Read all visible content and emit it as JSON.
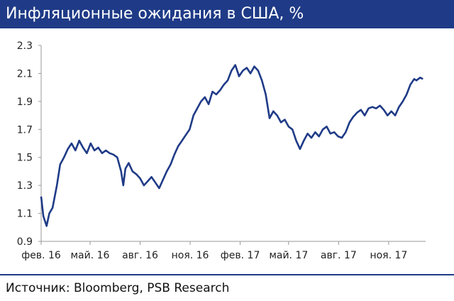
{
  "title": "Инфляционные ожидания в США, %",
  "source": "Источник: Bloomberg, PSB Research",
  "colors": {
    "title_bg": "#1f3b87",
    "line": "#1f3b87",
    "axis": "#999999"
  },
  "chart_data": {
    "type": "line",
    "title": "Инфляционные ожидания в США, %",
    "xlabel": "",
    "ylabel": "",
    "ylim": [
      0.9,
      2.3
    ],
    "yticks": [
      "0.9",
      "1.1",
      "1.3",
      "1.5",
      "1.7",
      "1.9",
      "2.1",
      "2.3"
    ],
    "xticks": [
      {
        "label": "фев. 16",
        "date": "2016-02-01"
      },
      {
        "label": "май. 16",
        "date": "2016-05-01"
      },
      {
        "label": "авг. 16",
        "date": "2016-08-01"
      },
      {
        "label": "ноя. 16",
        "date": "2016-11-01"
      },
      {
        "label": "фев. 17",
        "date": "2017-02-01"
      },
      {
        "label": "май. 17",
        "date": "2017-05-01"
      },
      {
        "label": "авг. 17",
        "date": "2017-08-01"
      },
      {
        "label": "ноя. 17",
        "date": "2017-11-01"
      }
    ],
    "grid": false,
    "legend": "none",
    "series": [
      {
        "points": [
          [
            "2016-02-01",
            1.22
          ],
          [
            "2016-02-05",
            1.08
          ],
          [
            "2016-02-11",
            1.01
          ],
          [
            "2016-02-16",
            1.1
          ],
          [
            "2016-02-22",
            1.14
          ],
          [
            "2016-03-01",
            1.3
          ],
          [
            "2016-03-07",
            1.45
          ],
          [
            "2016-03-14",
            1.5
          ],
          [
            "2016-03-21",
            1.56
          ],
          [
            "2016-03-28",
            1.6
          ],
          [
            "2016-04-04",
            1.55
          ],
          [
            "2016-04-11",
            1.62
          ],
          [
            "2016-04-18",
            1.57
          ],
          [
            "2016-04-25",
            1.53
          ],
          [
            "2016-05-02",
            1.6
          ],
          [
            "2016-05-09",
            1.55
          ],
          [
            "2016-05-16",
            1.57
          ],
          [
            "2016-05-23",
            1.53
          ],
          [
            "2016-05-30",
            1.55
          ],
          [
            "2016-06-06",
            1.53
          ],
          [
            "2016-06-13",
            1.52
          ],
          [
            "2016-06-20",
            1.5
          ],
          [
            "2016-06-27",
            1.4
          ],
          [
            "2016-07-01",
            1.3
          ],
          [
            "2016-07-05",
            1.42
          ],
          [
            "2016-07-11",
            1.46
          ],
          [
            "2016-07-18",
            1.4
          ],
          [
            "2016-07-25",
            1.38
          ],
          [
            "2016-08-01",
            1.35
          ],
          [
            "2016-08-08",
            1.3
          ],
          [
            "2016-08-15",
            1.33
          ],
          [
            "2016-08-22",
            1.36
          ],
          [
            "2016-08-29",
            1.32
          ],
          [
            "2016-09-05",
            1.28
          ],
          [
            "2016-09-12",
            1.34
          ],
          [
            "2016-09-19",
            1.4
          ],
          [
            "2016-09-26",
            1.45
          ],
          [
            "2016-10-03",
            1.52
          ],
          [
            "2016-10-10",
            1.58
          ],
          [
            "2016-10-17",
            1.62
          ],
          [
            "2016-10-24",
            1.66
          ],
          [
            "2016-10-31",
            1.7
          ],
          [
            "2016-11-07",
            1.8
          ],
          [
            "2016-11-14",
            1.85
          ],
          [
            "2016-11-21",
            1.9
          ],
          [
            "2016-11-28",
            1.93
          ],
          [
            "2016-12-05",
            1.88
          ],
          [
            "2016-12-12",
            1.97
          ],
          [
            "2016-12-19",
            1.95
          ],
          [
            "2016-12-26",
            1.98
          ],
          [
            "2017-01-02",
            2.02
          ],
          [
            "2017-01-09",
            2.05
          ],
          [
            "2017-01-16",
            2.12
          ],
          [
            "2017-01-23",
            2.16
          ],
          [
            "2017-01-30",
            2.08
          ],
          [
            "2017-02-06",
            2.12
          ],
          [
            "2017-02-13",
            2.14
          ],
          [
            "2017-02-20",
            2.1
          ],
          [
            "2017-02-27",
            2.15
          ],
          [
            "2017-03-06",
            2.12
          ],
          [
            "2017-03-13",
            2.05
          ],
          [
            "2017-03-20",
            1.95
          ],
          [
            "2017-03-27",
            1.78
          ],
          [
            "2017-04-03",
            1.83
          ],
          [
            "2017-04-10",
            1.8
          ],
          [
            "2017-04-17",
            1.75
          ],
          [
            "2017-04-24",
            1.77
          ],
          [
            "2017-05-01",
            1.72
          ],
          [
            "2017-05-08",
            1.7
          ],
          [
            "2017-05-15",
            1.62
          ],
          [
            "2017-05-22",
            1.56
          ],
          [
            "2017-05-29",
            1.62
          ],
          [
            "2017-06-05",
            1.67
          ],
          [
            "2017-06-12",
            1.64
          ],
          [
            "2017-06-19",
            1.68
          ],
          [
            "2017-06-26",
            1.65
          ],
          [
            "2017-07-03",
            1.7
          ],
          [
            "2017-07-10",
            1.72
          ],
          [
            "2017-07-17",
            1.67
          ],
          [
            "2017-07-24",
            1.68
          ],
          [
            "2017-07-31",
            1.65
          ],
          [
            "2017-08-07",
            1.64
          ],
          [
            "2017-08-14",
            1.68
          ],
          [
            "2017-08-21",
            1.75
          ],
          [
            "2017-08-28",
            1.79
          ],
          [
            "2017-09-04",
            1.82
          ],
          [
            "2017-09-11",
            1.84
          ],
          [
            "2017-09-18",
            1.8
          ],
          [
            "2017-09-25",
            1.85
          ],
          [
            "2017-10-02",
            1.86
          ],
          [
            "2017-10-09",
            1.85
          ],
          [
            "2017-10-16",
            1.87
          ],
          [
            "2017-10-23",
            1.84
          ],
          [
            "2017-10-30",
            1.8
          ],
          [
            "2017-11-06",
            1.83
          ],
          [
            "2017-11-13",
            1.8
          ],
          [
            "2017-11-20",
            1.86
          ],
          [
            "2017-11-27",
            1.9
          ],
          [
            "2017-12-04",
            1.95
          ],
          [
            "2017-12-11",
            2.02
          ],
          [
            "2017-12-18",
            2.06
          ],
          [
            "2017-12-22",
            2.05
          ],
          [
            "2017-12-29",
            2.07
          ],
          [
            "2018-01-03",
            2.06
          ]
        ]
      }
    ]
  }
}
